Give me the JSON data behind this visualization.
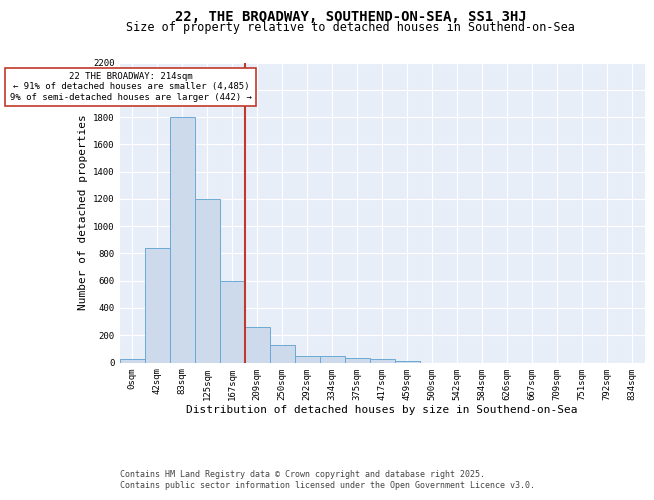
{
  "title": "22, THE BROADWAY, SOUTHEND-ON-SEA, SS1 3HJ",
  "subtitle": "Size of property relative to detached houses in Southend-on-Sea",
  "xlabel": "Distribution of detached houses by size in Southend-on-Sea",
  "ylabel": "Number of detached properties",
  "bin_labels": [
    "0sqm",
    "42sqm",
    "83sqm",
    "125sqm",
    "167sqm",
    "209sqm",
    "250sqm",
    "292sqm",
    "334sqm",
    "375sqm",
    "417sqm",
    "459sqm",
    "500sqm",
    "542sqm",
    "584sqm",
    "626sqm",
    "667sqm",
    "709sqm",
    "751sqm",
    "792sqm",
    "834sqm"
  ],
  "bar_values": [
    25,
    840,
    1800,
    1200,
    600,
    260,
    130,
    45,
    45,
    35,
    25,
    10,
    0,
    0,
    0,
    0,
    0,
    0,
    0,
    0,
    0
  ],
  "bar_color": "#cddaeb",
  "bar_edgecolor": "#6aaad4",
  "property_line_x": 5,
  "property_line_color": "#c0392b",
  "annotation_text": "22 THE BROADWAY: 214sqm\n← 91% of detached houses are smaller (4,485)\n9% of semi-detached houses are larger (442) →",
  "annotation_box_edgecolor": "#c0392b",
  "ylim": [
    0,
    2200
  ],
  "yticks": [
    0,
    200,
    400,
    600,
    800,
    1000,
    1200,
    1400,
    1600,
    1800,
    2000,
    2200
  ],
  "footnote1": "Contains HM Land Registry data © Crown copyright and database right 2025.",
  "footnote2": "Contains public sector information licensed under the Open Government Licence v3.0.",
  "bg_color": "#e8eef8",
  "fig_bg_color": "#ffffff",
  "title_fontsize": 10,
  "subtitle_fontsize": 8.5,
  "tick_fontsize": 6.5,
  "label_fontsize": 8,
  "footnote_fontsize": 6
}
